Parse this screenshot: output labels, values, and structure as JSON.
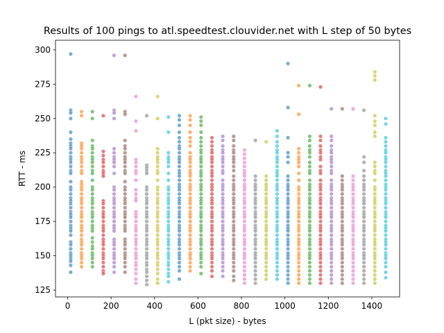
{
  "chart_data": {
    "type": "scatter",
    "title": "Results of 100 pings to atl.speedtest.clouvider.net with L step of 50 bytes",
    "xlabel": "L (pkt size) - bytes",
    "ylabel": "RTT - ms",
    "xlim": [
      -56,
      1528
    ],
    "ylim": [
      120,
      307
    ],
    "xticks": [
      0,
      200,
      400,
      600,
      800,
      1000,
      1200,
      1400
    ],
    "yticks": [
      125,
      150,
      175,
      200,
      225,
      250,
      275,
      300
    ],
    "grid": false,
    "legend": "none",
    "marker_alpha": 0.6,
    "palette": [
      "#1f77b4",
      "#ff7f0e",
      "#2ca02c",
      "#d62728",
      "#9467bd",
      "#8c564b",
      "#e377c2",
      "#7f7f7f",
      "#bcbd22",
      "#17becf"
    ],
    "series": [
      {
        "x": 14,
        "values": [
          297,
          256,
          254,
          250,
          240,
          235,
          232,
          230,
          228,
          225,
          222,
          220,
          218,
          215,
          212,
          210,
          204,
          200,
          198,
          195,
          192,
          190,
          188,
          185,
          182,
          180,
          178,
          175,
          172,
          170,
          168,
          165,
          160,
          158,
          155,
          152,
          150,
          148,
          146,
          143,
          138
        ]
      },
      {
        "x": 64,
        "values": [
          255,
          252,
          232,
          230,
          228,
          225,
          222,
          220,
          218,
          215,
          212,
          210,
          204,
          202,
          200,
          198,
          195,
          192,
          190,
          188,
          185,
          182,
          180,
          178,
          175,
          172,
          170,
          168,
          165,
          162,
          160,
          158,
          155,
          152,
          150,
          148,
          145,
          142
        ]
      },
      {
        "x": 114,
        "values": [
          255,
          250,
          234,
          230,
          228,
          225,
          222,
          220,
          218,
          215,
          212,
          210,
          205,
          200,
          198,
          195,
          192,
          190,
          188,
          185,
          182,
          180,
          178,
          175,
          172,
          170,
          168,
          163,
          160,
          157,
          155,
          152,
          150,
          148,
          145,
          142
        ]
      },
      {
        "x": 164,
        "values": [
          252,
          226,
          223,
          220,
          218,
          215,
          212,
          210,
          208,
          190,
          188,
          185,
          182,
          180,
          178,
          175,
          172,
          170,
          168,
          165,
          162,
          160,
          158,
          155,
          152,
          150,
          148,
          145,
          142,
          139,
          137
        ]
      },
      {
        "x": 214,
        "values": [
          296,
          256,
          254,
          250,
          228,
          225,
          222,
          220,
          218,
          215,
          210,
          200,
          198,
          195,
          192,
          190,
          188,
          185,
          182,
          180,
          178,
          175,
          172,
          170,
          168,
          162,
          160,
          158,
          155,
          152,
          150,
          148,
          145,
          142,
          138
        ]
      },
      {
        "x": 264,
        "values": [
          296,
          255,
          253,
          234,
          230,
          228,
          225,
          222,
          220,
          218,
          215,
          212,
          210,
          204,
          200,
          198,
          195,
          192,
          190,
          188,
          185,
          182,
          180,
          178,
          175,
          172,
          170,
          168,
          162,
          160,
          158,
          155,
          152,
          150,
          148,
          145,
          142,
          138
        ]
      },
      {
        "x": 314,
        "values": [
          266,
          248,
          241,
          220,
          218,
          215,
          212,
          210,
          205,
          198,
          195,
          192,
          190,
          182,
          180,
          178,
          175,
          172,
          170,
          168,
          165,
          162,
          160,
          158,
          155,
          152,
          150,
          148,
          145,
          143,
          140,
          137,
          133,
          130
        ]
      },
      {
        "x": 364,
        "values": [
          252,
          216,
          214,
          212,
          210,
          200,
          198,
          195,
          192,
          190,
          188,
          185,
          182,
          180,
          178,
          175,
          172,
          170,
          168,
          165,
          162,
          160,
          158,
          155,
          152,
          150,
          148,
          145,
          143,
          140,
          138,
          135,
          132,
          129
        ]
      },
      {
        "x": 414,
        "values": [
          266,
          250,
          228,
          225,
          222,
          220,
          218,
          215,
          212,
          210,
          205,
          200,
          198,
          195,
          192,
          190,
          188,
          185,
          182,
          180,
          178,
          175,
          172,
          170,
          168,
          165,
          162,
          160,
          158,
          155,
          152,
          150,
          148,
          145,
          143,
          140,
          137,
          133,
          130
        ]
      },
      {
        "x": 464,
        "values": [
          251,
          240,
          225,
          222,
          220,
          218,
          215,
          210,
          205,
          200,
          198,
          195,
          192,
          190,
          188,
          185,
          182,
          180,
          178,
          175,
          172,
          170,
          168,
          165,
          162,
          160,
          158,
          155,
          152,
          150,
          148,
          145,
          143,
          140,
          137,
          135,
          131
        ]
      },
      {
        "x": 514,
        "values": [
          252,
          249,
          245,
          240,
          236,
          233,
          230,
          228,
          225,
          222,
          220,
          218,
          215,
          212,
          210,
          208,
          205,
          202,
          200,
          198,
          195,
          192,
          190,
          188,
          185,
          182,
          180,
          178,
          175,
          172,
          170,
          168,
          165,
          162,
          160,
          158,
          155,
          152,
          150,
          148,
          145,
          142,
          139,
          133
        ]
      },
      {
        "x": 564,
        "values": [
          252,
          249,
          245,
          240,
          236,
          233,
          230,
          225,
          222,
          220,
          218,
          215,
          212,
          210,
          208,
          205,
          202,
          200,
          198,
          195,
          192,
          190,
          188,
          185,
          182,
          180,
          178,
          175,
          172,
          170,
          168,
          165,
          162,
          160,
          158,
          155,
          152,
          150,
          148,
          145,
          142,
          139
        ]
      },
      {
        "x": 614,
        "values": [
          251,
          248,
          245,
          240,
          236,
          233,
          230,
          227,
          225,
          222,
          220,
          218,
          215,
          212,
          210,
          208,
          205,
          202,
          200,
          198,
          195,
          192,
          190,
          188,
          185,
          182,
          180,
          178,
          175,
          172,
          170,
          168,
          165,
          162,
          160,
          158,
          155,
          152,
          150,
          148,
          145,
          142,
          137
        ]
      },
      {
        "x": 664,
        "values": [
          236,
          233,
          230,
          227,
          225,
          222,
          220,
          218,
          215,
          212,
          210,
          208,
          205,
          202,
          200,
          198,
          195,
          192,
          190,
          188,
          185,
          182,
          180,
          178,
          175,
          172,
          170,
          168,
          165,
          162,
          160,
          158,
          155,
          152,
          150,
          148,
          145,
          142,
          139,
          135
        ]
      },
      {
        "x": 714,
        "values": [
          237,
          234,
          230,
          227,
          225,
          222,
          220,
          218,
          215,
          212,
          210,
          205,
          202,
          200,
          198,
          195,
          192,
          190,
          188,
          185,
          182,
          180,
          178,
          175,
          172,
          170,
          168,
          165,
          162,
          160,
          158,
          155,
          152,
          150,
          148,
          145,
          142,
          139,
          135
        ]
      },
      {
        "x": 764,
        "values": [
          237,
          234,
          230,
          227,
          225,
          222,
          220,
          218,
          215,
          212,
          208,
          205,
          202,
          200,
          198,
          195,
          192,
          190,
          188,
          185,
          182,
          180,
          178,
          175,
          172,
          170,
          168,
          165,
          162,
          160,
          158,
          155,
          152,
          150,
          148,
          145,
          142,
          139,
          135,
          132
        ]
      },
      {
        "x": 814,
        "values": [
          227,
          224,
          221,
          218,
          215,
          212,
          210,
          208,
          205,
          202,
          200,
          198,
          195,
          192,
          190,
          188,
          185,
          182,
          180,
          178,
          175,
          172,
          170,
          168,
          165,
          162,
          160,
          158,
          155,
          152,
          150,
          148,
          145,
          142,
          139,
          136,
          133,
          130
        ]
      },
      {
        "x": 864,
        "values": [
          234,
          208,
          205,
          202,
          200,
          198,
          195,
          192,
          190,
          188,
          185,
          182,
          180,
          178,
          175,
          172,
          170,
          168,
          165,
          162,
          160,
          158,
          155,
          152,
          150,
          148,
          145,
          142,
          139,
          136,
          133,
          130
        ]
      },
      {
        "x": 914,
        "values": [
          233,
          208,
          205,
          202,
          200,
          198,
          195,
          192,
          190,
          188,
          185,
          182,
          180,
          178,
          175,
          172,
          170,
          168,
          165,
          162,
          160,
          158,
          155,
          152,
          150,
          148,
          145,
          142,
          139,
          136,
          133
        ]
      },
      {
        "x": 964,
        "values": [
          241,
          237,
          233,
          230,
          227,
          225,
          222,
          220,
          218,
          215,
          212,
          210,
          208,
          205,
          202,
          200,
          198,
          195,
          192,
          190,
          188,
          185,
          182,
          180,
          178,
          175,
          172,
          170,
          168,
          165,
          162,
          160,
          158,
          155,
          152,
          150,
          148,
          145,
          142,
          139,
          136,
          133
        ]
      },
      {
        "x": 1014,
        "values": [
          290,
          258,
          236,
          225,
          222,
          218,
          208,
          205,
          202,
          200,
          198,
          195,
          192,
          190,
          188,
          185,
          182,
          180,
          178,
          175,
          172,
          170,
          168,
          165,
          162,
          160,
          158,
          155,
          152,
          150,
          148,
          145,
          142,
          139,
          136,
          133,
          130
        ]
      },
      {
        "x": 1064,
        "values": [
          274,
          253,
          228,
          225,
          222,
          220,
          218,
          215,
          210,
          205,
          200,
          198,
          195,
          192,
          190,
          188,
          185,
          182,
          180,
          178,
          175,
          172,
          170,
          168,
          165,
          162,
          160,
          158,
          155,
          152,
          150,
          148,
          145,
          142,
          139,
          136,
          133,
          130
        ]
      },
      {
        "x": 1114,
        "values": [
          274,
          237,
          234,
          230,
          227,
          225,
          222,
          218,
          215,
          212,
          210,
          205,
          202,
          200,
          198,
          195,
          192,
          190,
          188,
          185,
          182,
          180,
          178,
          175,
          172,
          170,
          168,
          165,
          162,
          160,
          158,
          155,
          152,
          150,
          148,
          145,
          142,
          139,
          136,
          133,
          130
        ]
      },
      {
        "x": 1164,
        "values": [
          273,
          237,
          234,
          230,
          227,
          225,
          222,
          220,
          215,
          212,
          210,
          205,
          202,
          200,
          198,
          195,
          192,
          190,
          188,
          185,
          182,
          180,
          178,
          175,
          172,
          170,
          168,
          165,
          162,
          160,
          158,
          155,
          152,
          150,
          148,
          145,
          142,
          139,
          136,
          133,
          130
        ]
      },
      {
        "x": 1214,
        "values": [
          257,
          237,
          234,
          230,
          227,
          225,
          222,
          220,
          218,
          215,
          212,
          210,
          205,
          202,
          200,
          198,
          195,
          192,
          190,
          188,
          185,
          182,
          180,
          178,
          175,
          172,
          170,
          168,
          165,
          162,
          160,
          158,
          155,
          152,
          150,
          148,
          145,
          142,
          139,
          136,
          133,
          130
        ]
      },
      {
        "x": 1264,
        "values": [
          257,
          208,
          205,
          202,
          200,
          198,
          195,
          192,
          190,
          188,
          185,
          182,
          180,
          178,
          175,
          172,
          170,
          168,
          165,
          162,
          160,
          158,
          155,
          152,
          150,
          148,
          145,
          142,
          139,
          136,
          133,
          130
        ]
      },
      {
        "x": 1314,
        "values": [
          257,
          208,
          205,
          202,
          200,
          198,
          195,
          192,
          190,
          188,
          185,
          182,
          180,
          178,
          175,
          172,
          170,
          168,
          165,
          162,
          160,
          158,
          155,
          152,
          150,
          148,
          145,
          142,
          139,
          136,
          133,
          130
        ]
      },
      {
        "x": 1364,
        "values": [
          256,
          222,
          218,
          212,
          208,
          205,
          202,
          200,
          198,
          195,
          192,
          190,
          188,
          185,
          182,
          180,
          178,
          175,
          172,
          170,
          168,
          165,
          162,
          160,
          158,
          155,
          152,
          150,
          148,
          145,
          142,
          139,
          136,
          133,
          130
        ]
      },
      {
        "x": 1414,
        "values": [
          284,
          281,
          278,
          252,
          248,
          245,
          240,
          237,
          218,
          215,
          212,
          210,
          205,
          200,
          198,
          195,
          192,
          190,
          188,
          185,
          182,
          180,
          178,
          175,
          172,
          170,
          168,
          165,
          162,
          160,
          158,
          155,
          152,
          150,
          148,
          145,
          142,
          139,
          136,
          133,
          130
        ]
      },
      {
        "x": 1464,
        "values": [
          250,
          246,
          236,
          233,
          230,
          227,
          225,
          222,
          220,
          218,
          215,
          212,
          210,
          208,
          205,
          202,
          200,
          198,
          195,
          192,
          190,
          188,
          185,
          182,
          180,
          178,
          175,
          172,
          170,
          168,
          165,
          162,
          160,
          158,
          155,
          152,
          150,
          148,
          145,
          142,
          138,
          134
        ]
      }
    ]
  }
}
